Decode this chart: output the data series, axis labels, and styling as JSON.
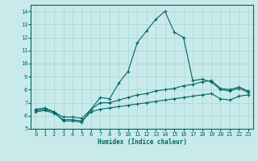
{
  "xlabel": "Humidex (Indice chaleur)",
  "xlim": [
    -0.5,
    23.5
  ],
  "ylim": [
    5,
    14.5
  ],
  "yticks": [
    5,
    6,
    7,
    8,
    9,
    10,
    11,
    12,
    13,
    14
  ],
  "xticks": [
    0,
    1,
    2,
    3,
    4,
    5,
    6,
    7,
    8,
    9,
    10,
    11,
    12,
    13,
    14,
    15,
    16,
    17,
    18,
    19,
    20,
    21,
    22,
    23
  ],
  "background_color": "#c8eaea",
  "grid_color": "#aad4d4",
  "line_color": "#006666",
  "line1_x": [
    0,
    1,
    2,
    3,
    4,
    5,
    6,
    7,
    8,
    9,
    10,
    11,
    12,
    13,
    14,
    15,
    16,
    17,
    18,
    19,
    20,
    21,
    22,
    23
  ],
  "line1_y": [
    6.5,
    6.6,
    6.3,
    5.6,
    5.6,
    5.5,
    6.5,
    7.4,
    7.3,
    8.5,
    9.4,
    11.6,
    12.5,
    13.4,
    14.0,
    12.4,
    12.0,
    8.7,
    8.8,
    8.6,
    8.0,
    7.9,
    8.1,
    7.8
  ],
  "line2_x": [
    0,
    1,
    2,
    3,
    4,
    5,
    6,
    7,
    8,
    9,
    10,
    11,
    12,
    13,
    14,
    15,
    16,
    17,
    18,
    19,
    20,
    21,
    22,
    23
  ],
  "line2_y": [
    6.4,
    6.5,
    6.3,
    5.9,
    5.9,
    5.8,
    6.5,
    7.0,
    7.0,
    7.2,
    7.4,
    7.6,
    7.7,
    7.9,
    8.0,
    8.1,
    8.3,
    8.4,
    8.6,
    8.7,
    8.1,
    8.0,
    8.2,
    7.9
  ],
  "line3_x": [
    0,
    1,
    2,
    3,
    4,
    5,
    6,
    7,
    8,
    9,
    10,
    11,
    12,
    13,
    14,
    15,
    16,
    17,
    18,
    19,
    20,
    21,
    22,
    23
  ],
  "line3_y": [
    6.3,
    6.4,
    6.2,
    5.7,
    5.7,
    5.6,
    6.3,
    6.5,
    6.6,
    6.7,
    6.8,
    6.9,
    7.0,
    7.1,
    7.2,
    7.3,
    7.4,
    7.5,
    7.6,
    7.7,
    7.3,
    7.2,
    7.5,
    7.6
  ]
}
